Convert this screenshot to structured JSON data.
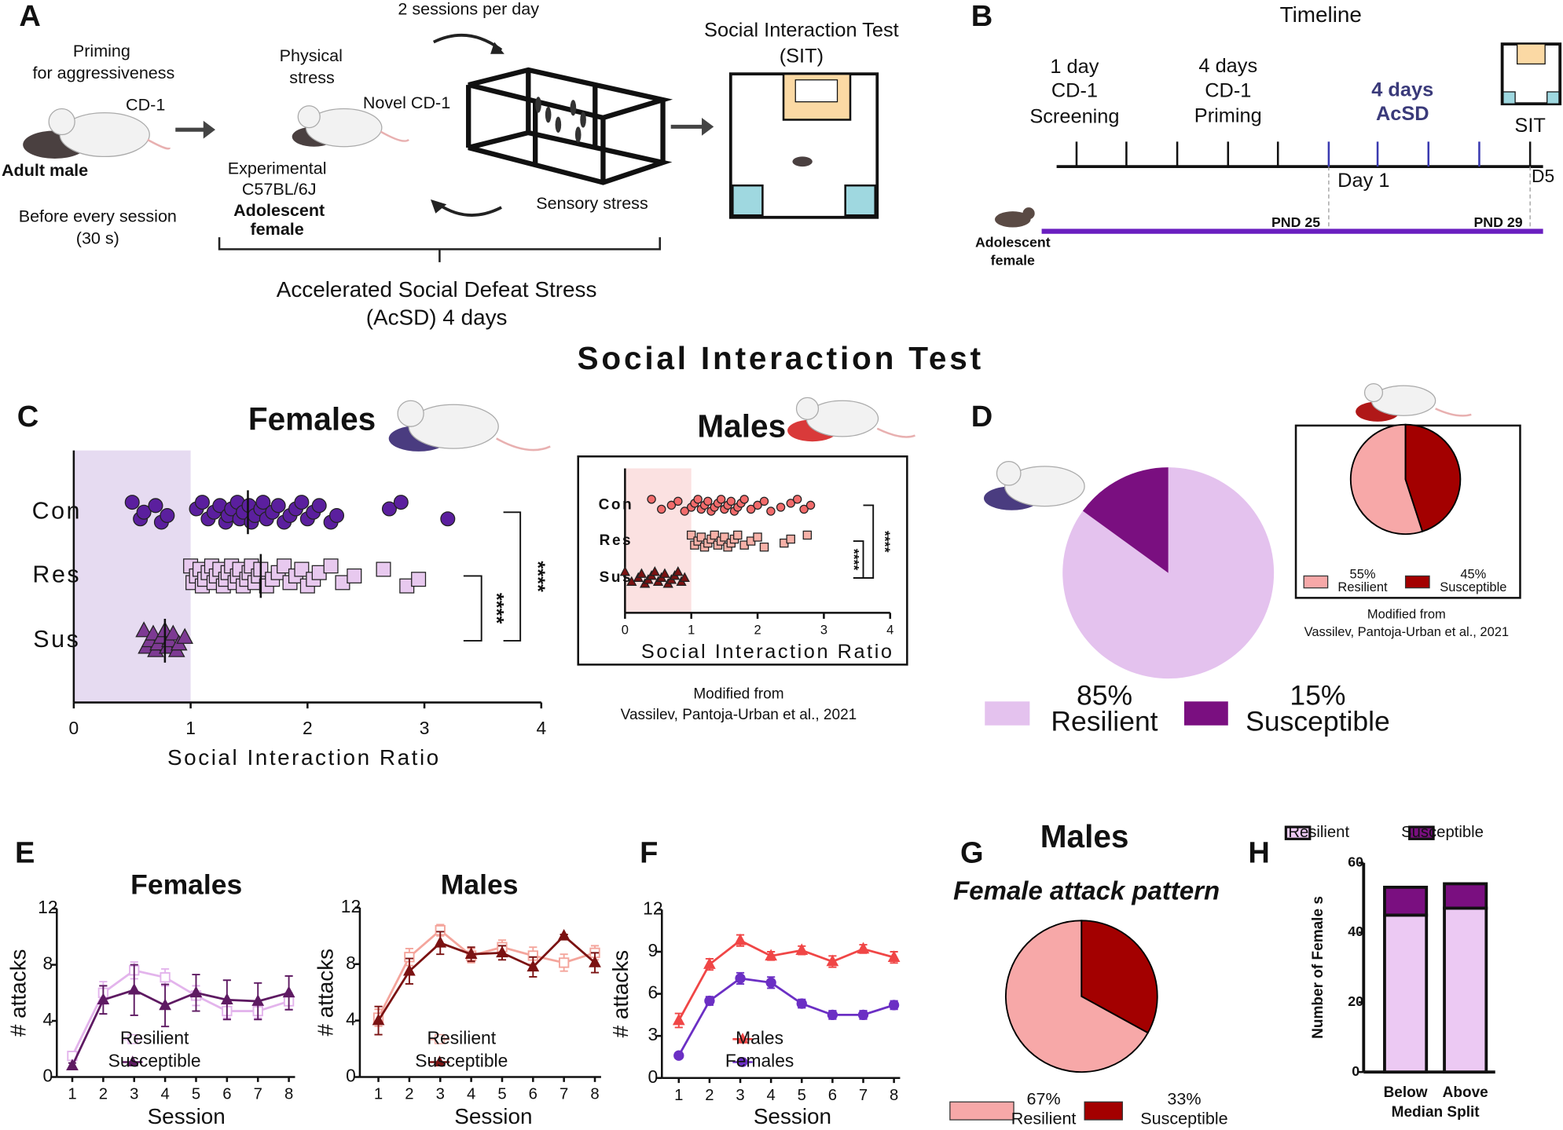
{
  "panel_labels": [
    "A",
    "B",
    "C",
    "D",
    "E",
    "F",
    "G",
    "H"
  ],
  "title": "Social Interaction Test",
  "diagram": {
    "panel_a": {
      "priming": [
        "Priming",
        "for aggressiveness"
      ],
      "cd1": "CD-1",
      "adult_male": "Adult male",
      "before": [
        "Before every session",
        "(30 s)"
      ],
      "physical": [
        "Physical",
        "stress"
      ],
      "novel": "Novel CD-1",
      "experimental": [
        "Experimental",
        "C57BL/6J"
      ],
      "adolescent": [
        "Adolescent",
        "female"
      ],
      "sessions": "2 sessions per day",
      "sensory": "Sensory stress",
      "sit": [
        "Social Interaction Test",
        "(SIT)"
      ],
      "acsd": [
        "Accelerated Social Defeat Stress",
        "(AcSD) 4 days"
      ]
    },
    "panel_b": {
      "title": "Timeline",
      "screening": [
        "1 day",
        "CD-1",
        "Screening"
      ],
      "priming": [
        "4 days",
        "CD-1",
        "Priming"
      ],
      "acsd": [
        "4 days",
        "AcSD"
      ],
      "sit": "SIT",
      "day1": "Day 1",
      "d5": "D5",
      "pnd25": "PND 25",
      "pnd29": "PND 29",
      "subject": [
        "Adolescent",
        "female"
      ]
    }
  },
  "chart_data": [
    {
      "type": "strip",
      "title": "Females",
      "categories": [
        "Con",
        "Res",
        "Sus"
      ],
      "xlim": [
        0,
        4
      ],
      "xticks": [
        0,
        1,
        2,
        3,
        4
      ],
      "xlabel": "Social Interaction Ratio",
      "shaded_range": [
        0,
        1
      ],
      "shade_color": "#e6dbf1",
      "annotations": [
        "****",
        "****"
      ],
      "series": [
        {
          "color": "#5b1f9e",
          "marker": "circle",
          "mean": 1.49,
          "values": [
            0.5,
            0.57,
            0.6,
            0.7,
            0.75,
            0.8,
            1.05,
            1.1,
            1.15,
            1.2,
            1.25,
            1.3,
            1.32,
            1.35,
            1.4,
            1.42,
            1.45,
            1.5,
            1.52,
            1.55,
            1.6,
            1.62,
            1.65,
            1.7,
            1.75,
            1.8,
            1.85,
            1.9,
            1.95,
            2.0,
            2.05,
            2.1,
            2.2,
            2.25,
            2.7,
            2.8,
            3.2
          ]
        },
        {
          "color": "#e8c9ef",
          "marker": "square",
          "mean": 1.6,
          "values": [
            1.0,
            1.02,
            1.05,
            1.08,
            1.1,
            1.12,
            1.15,
            1.18,
            1.2,
            1.22,
            1.25,
            1.28,
            1.3,
            1.32,
            1.35,
            1.38,
            1.4,
            1.42,
            1.45,
            1.48,
            1.5,
            1.52,
            1.55,
            1.58,
            1.6,
            1.65,
            1.7,
            1.75,
            1.8,
            1.85,
            1.9,
            1.95,
            2.0,
            2.05,
            2.1,
            2.2,
            2.3,
            2.4,
            2.65,
            2.85,
            2.95
          ]
        },
        {
          "color": "#7d3a93",
          "marker": "triangle",
          "mean": 0.78,
          "values": [
            0.6,
            0.62,
            0.65,
            0.68,
            0.7,
            0.72,
            0.75,
            0.78,
            0.8,
            0.82,
            0.85,
            0.88,
            0.9,
            0.95
          ]
        }
      ]
    },
    {
      "type": "strip",
      "title": "Males",
      "categories": [
        "Con",
        "Res",
        "Sus"
      ],
      "xlim": [
        0,
        4
      ],
      "xticks": [
        0,
        1,
        2,
        3,
        4
      ],
      "xlabel": "Social Interaction Ratio",
      "shaded_range": [
        0,
        1
      ],
      "shade_color": "#fbe1e1",
      "annotations": [
        "****",
        "****"
      ],
      "notes": [
        "Modified from",
        "Vassilev, Pantoja-Urban et al., 2021"
      ],
      "series": [
        {
          "color": "#f26b6b",
          "marker": "circle",
          "values": [
            0.4,
            0.55,
            0.7,
            0.8,
            0.9,
            1.0,
            1.05,
            1.1,
            1.15,
            1.2,
            1.25,
            1.3,
            1.35,
            1.4,
            1.45,
            1.5,
            1.55,
            1.6,
            1.65,
            1.7,
            1.75,
            1.8,
            1.9,
            2.0,
            2.1,
            2.2,
            2.35,
            2.5,
            2.6,
            2.7,
            2.8
          ]
        },
        {
          "color": "#f7b1a8",
          "marker": "square",
          "values": [
            1.0,
            1.05,
            1.1,
            1.15,
            1.2,
            1.25,
            1.3,
            1.35,
            1.4,
            1.45,
            1.5,
            1.55,
            1.6,
            1.65,
            1.7,
            1.8,
            1.9,
            2.0,
            2.1,
            2.4,
            2.5,
            2.75
          ]
        },
        {
          "color": "#7b1212",
          "marker": "triangle",
          "values": [
            0.0,
            0.1,
            0.2,
            0.25,
            0.3,
            0.35,
            0.4,
            0.45,
            0.5,
            0.55,
            0.6,
            0.65,
            0.7,
            0.75,
            0.8,
            0.85,
            0.9
          ]
        }
      ]
    },
    {
      "type": "pie",
      "categories": [
        "Resilient",
        "Susceptible"
      ],
      "values": [
        85,
        15
      ],
      "value_labels": [
        "85%",
        "15%"
      ],
      "colors": [
        "#e4c2ee",
        "#7a0f80"
      ],
      "direction": "clockwise"
    },
    {
      "type": "pie",
      "categories": [
        "Resilient",
        "Susceptible"
      ],
      "values": [
        55,
        45
      ],
      "value_labels": [
        "55%",
        "45%"
      ],
      "colors": [
        "#f7a8a8",
        "#a30000"
      ],
      "direction": "counterclockwise",
      "notes": [
        "Modified from",
        "Vassilev, Pantoja-Urban et al., 2021"
      ]
    },
    {
      "type": "line",
      "title": "Females",
      "x": [
        1,
        2,
        3,
        4,
        5,
        6,
        7,
        8
      ],
      "xlim": [
        0.5,
        8.2
      ],
      "xticks": [
        1,
        2,
        3,
        4,
        5,
        6,
        7,
        8
      ],
      "ylim": [
        0,
        12
      ],
      "yticks": [
        0,
        4,
        8,
        12
      ],
      "xlabel": "Session",
      "ylabel": "# attacks",
      "series": [
        {
          "name": "Resilient",
          "color": "#e3b4ec",
          "marker": "square",
          "values": [
            1.5,
            6,
            7.6,
            7.1,
            5.8,
            4.7,
            4.7,
            5.4
          ],
          "errors": [
            0.3,
            0.8,
            0.6,
            0.6,
            0.7,
            0.5,
            0.5,
            0.6
          ]
        },
        {
          "name": "Susceptible",
          "color": "#5e1a62",
          "marker": "triangle",
          "values": [
            0.8,
            5.5,
            6.2,
            5.1,
            6,
            5.5,
            5.4,
            6
          ],
          "errors": [
            0.2,
            1.0,
            1.8,
            1.5,
            1.3,
            1.4,
            1.3,
            1.2
          ]
        }
      ]
    },
    {
      "type": "line",
      "title": "Males",
      "x": [
        1,
        2,
        3,
        4,
        5,
        6,
        7,
        8
      ],
      "xlim": [
        0.4,
        8.2
      ],
      "xticks": [
        1,
        2,
        3,
        4,
        5,
        6,
        7,
        8
      ],
      "ylim": [
        0,
        12
      ],
      "yticks": [
        0,
        4,
        8,
        12
      ],
      "xlabel": "Session",
      "ylabel": "# attacks",
      "series": [
        {
          "name": "Resilient",
          "color": "#f4a59c",
          "marker": "square",
          "values": [
            4.2,
            8.5,
            10.4,
            8.6,
            9.2,
            8.6,
            8.1,
            8.8
          ],
          "errors": [
            0.6,
            0.6,
            0.4,
            0.5,
            0.5,
            0.6,
            0.6,
            0.5
          ]
        },
        {
          "name": "Susceptible",
          "color": "#7b1212",
          "marker": "triangle",
          "values": [
            4.0,
            7.5,
            9.5,
            8.7,
            8.8,
            7.8,
            10,
            8.1
          ],
          "errors": [
            1.0,
            0.9,
            0.8,
            0.5,
            0.5,
            0.7,
            0.1,
            0.7
          ]
        }
      ]
    },
    {
      "type": "line",
      "x": [
        1,
        2,
        3,
        4,
        5,
        6,
        7,
        8
      ],
      "xlim": [
        0.45,
        8.2
      ],
      "xticks": [
        1,
        2,
        3,
        4,
        5,
        6,
        7,
        8
      ],
      "ylim": [
        0,
        12
      ],
      "yticks": [
        0,
        3,
        6,
        9,
        12
      ],
      "xlabel": "Session",
      "ylabel": "# attacks",
      "series": [
        {
          "name": "Males",
          "color": "#f04646",
          "marker": "triangle",
          "values": [
            4.1,
            8.1,
            9.8,
            8.7,
            9.1,
            8.3,
            9.2,
            8.6
          ],
          "errors": [
            0.5,
            0.4,
            0.4,
            0.3,
            0.3,
            0.4,
            0.3,
            0.4
          ]
        },
        {
          "name": "Females",
          "color": "#6b2fc4",
          "marker": "circle",
          "values": [
            1.6,
            5.5,
            7.1,
            6.8,
            5.3,
            4.5,
            4.5,
            5.2
          ],
          "errors": [
            0.2,
            0.3,
            0.4,
            0.4,
            0.3,
            0.3,
            0.3,
            0.3
          ]
        }
      ]
    },
    {
      "type": "pie",
      "title": "Males",
      "subtitle": "Female attack pattern",
      "categories": [
        "Resilient",
        "Susceptible"
      ],
      "values": [
        67,
        33
      ],
      "value_labels": [
        "67%",
        "33%"
      ],
      "colors": [
        "#f7a8a8",
        "#a30000"
      ],
      "direction": "counterclockwise"
    },
    {
      "type": "stacked_bar",
      "categories": [
        "Below",
        "Above"
      ],
      "xlabel": "Median Split",
      "ylabel": "Number of Female s",
      "ylim": [
        0,
        60
      ],
      "yticks": [
        0,
        20,
        40,
        60
      ],
      "series": [
        {
          "name": "Resilient",
          "color": "#ecc9f3",
          "values": [
            45,
            47
          ]
        },
        {
          "name": "Susceptible",
          "color": "#7a0f80",
          "values": [
            8,
            7
          ]
        }
      ]
    }
  ]
}
